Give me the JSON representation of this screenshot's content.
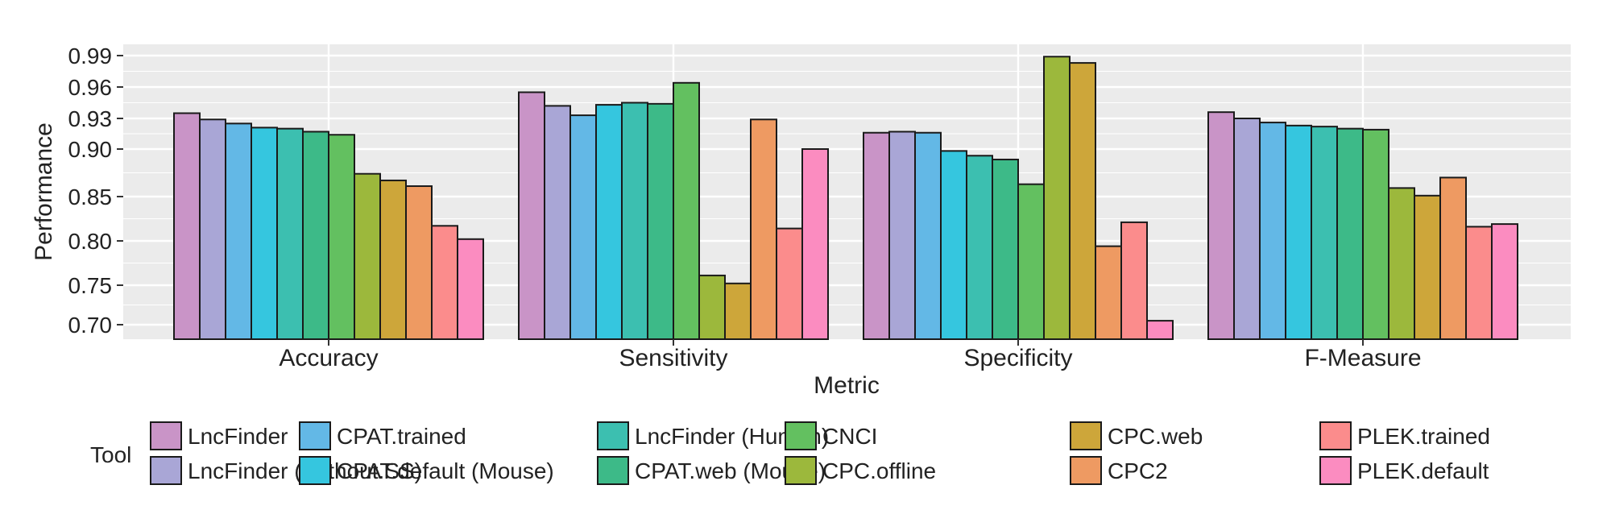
{
  "chart_data": {
    "type": "bar",
    "xlabel": "Metric",
    "ylabel": "Performance",
    "categories": [
      "Accuracy",
      "Sensitivity",
      "Specificity",
      "F-Measure"
    ],
    "yticks": [
      0.7,
      0.75,
      0.8,
      0.85,
      0.9,
      0.93,
      0.96,
      0.99
    ],
    "ytick_labels": [
      "0.70",
      "0.75",
      "0.80",
      "0.85",
      "0.90",
      "0.93",
      "0.96",
      "0.99"
    ],
    "ylim": [
      0.685,
      1.0
    ],
    "y_scale": "expanded-upper",
    "grid": true,
    "legend": {
      "title": "Tool",
      "position": "bottom"
    },
    "series": [
      {
        "name": "LncFinder",
        "color": "#c994c7",
        "values": [
          0.935,
          0.955,
          0.916,
          0.936
        ]
      },
      {
        "name": "LncFinder (Without.SS)",
        "color": "#a9a6d6",
        "values": [
          0.929,
          0.942,
          0.917,
          0.93
        ]
      },
      {
        "name": "CPAT.trained",
        "color": "#63b8e6",
        "values": [
          0.925,
          0.933,
          0.916,
          0.926
        ]
      },
      {
        "name": "CPAT.default (Mouse)",
        "color": "#35c6df",
        "values": [
          0.921,
          0.943,
          0.898,
          0.923
        ]
      },
      {
        "name": "LncFinder (Human)",
        "color": "#3cbfb0",
        "values": [
          0.92,
          0.945,
          0.893,
          0.922
        ]
      },
      {
        "name": "CPAT.web (Mouse)",
        "color": "#3dba88",
        "values": [
          0.917,
          0.944,
          0.889,
          0.92
        ]
      },
      {
        "name": "CNCI",
        "color": "#63c060",
        "values": [
          0.914,
          0.964,
          0.863,
          0.919
        ]
      },
      {
        "name": "CPC.offline",
        "color": "#9cb83c",
        "values": [
          0.874,
          0.761,
          0.989,
          0.859
        ]
      },
      {
        "name": "CPC.web",
        "color": "#cda63a",
        "values": [
          0.867,
          0.752,
          0.983,
          0.851
        ]
      },
      {
        "name": "CPC2",
        "color": "#ee9a62",
        "values": [
          0.861,
          0.929,
          0.794,
          0.87
        ]
      },
      {
        "name": "PLEK.trained",
        "color": "#fb8c8c",
        "values": [
          0.817,
          0.814,
          0.821,
          0.816
        ]
      },
      {
        "name": "PLEK.default",
        "color": "#fb8cc0",
        "values": [
          0.802,
          0.9,
          0.705,
          0.819
        ]
      }
    ]
  }
}
